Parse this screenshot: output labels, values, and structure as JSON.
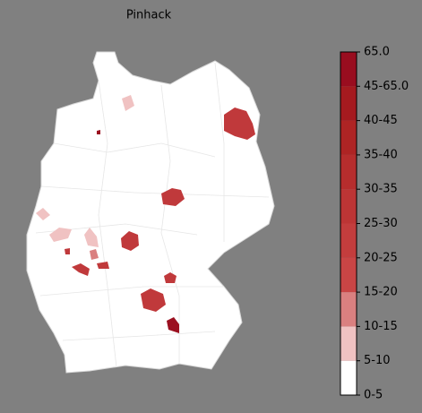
{
  "title": "Pinhack",
  "colorbar": {
    "labels": [
      "0-5",
      "5-10",
      "10-15",
      "15-20",
      "20-25",
      "25-30",
      "30-35",
      "35-40",
      "40-45",
      "45-65.0",
      "65.0"
    ],
    "colors": [
      "#ffffff",
      "#f0c2c2",
      "#da8080",
      "#c94545",
      "#c33d3d",
      "#bd3535",
      "#b62d2d",
      "#ae2424",
      "#a51a1f",
      "#990d1f"
    ]
  }
}
